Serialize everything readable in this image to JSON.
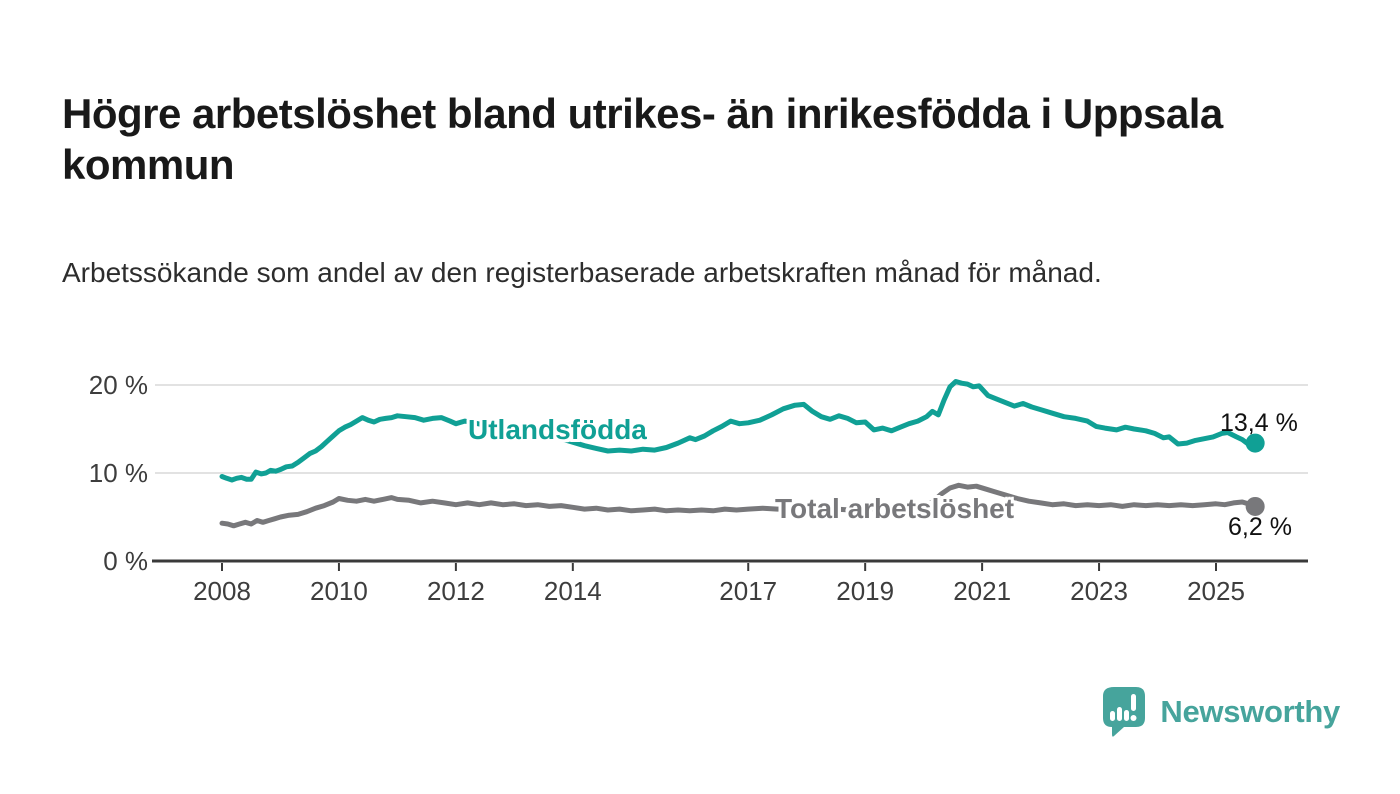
{
  "header": {
    "title": "Högre arbetslöshet bland utrikes- än inrikesfödda i Uppsala kommun",
    "subtitle": "Arbetssökande som andel av den registerbaserade arbetskraften månad för månad."
  },
  "chart_data": {
    "type": "line",
    "unit": "%",
    "x_range": [
      2008,
      2025.67
    ],
    "ylim": [
      0,
      22
    ],
    "grid": "horizontal",
    "gridline_color": "#d9d9d9",
    "axis_color": "#3a3a3a",
    "tick_text_color": "#3d3d3d",
    "y_ticks": [
      {
        "value": 20,
        "label": "20 %"
      },
      {
        "value": 10,
        "label": "10 %"
      },
      {
        "value": 0,
        "label": "0 %"
      }
    ],
    "x_ticks": [
      {
        "year": 2008,
        "label": "2008"
      },
      {
        "year": 2010,
        "label": "2010"
      },
      {
        "year": 2012,
        "label": "2012"
      },
      {
        "year": 2014,
        "label": "2014"
      },
      {
        "year": 2017,
        "label": "2017"
      },
      {
        "year": 2019,
        "label": "2019"
      },
      {
        "year": 2021,
        "label": "2021"
      },
      {
        "year": 2023,
        "label": "2023"
      },
      {
        "year": 2025,
        "label": "2025"
      }
    ],
    "series": [
      {
        "name": "Utlandsfödda",
        "color": "#10a095",
        "end_value": 13.4,
        "end_label": "13,4 %",
        "points": [
          [
            2008.0,
            9.6
          ],
          [
            2008.08,
            9.4
          ],
          [
            2008.17,
            9.2
          ],
          [
            2008.25,
            9.4
          ],
          [
            2008.33,
            9.5
          ],
          [
            2008.42,
            9.3
          ],
          [
            2008.5,
            9.3
          ],
          [
            2008.58,
            10.1
          ],
          [
            2008.67,
            9.9
          ],
          [
            2008.75,
            10.0
          ],
          [
            2008.83,
            10.3
          ],
          [
            2008.92,
            10.2
          ],
          [
            2009.0,
            10.4
          ],
          [
            2009.1,
            10.7
          ],
          [
            2009.2,
            10.8
          ],
          [
            2009.3,
            11.2
          ],
          [
            2009.4,
            11.7
          ],
          [
            2009.5,
            12.2
          ],
          [
            2009.6,
            12.5
          ],
          [
            2009.7,
            13.0
          ],
          [
            2009.8,
            13.6
          ],
          [
            2009.9,
            14.2
          ],
          [
            2010.0,
            14.8
          ],
          [
            2010.1,
            15.2
          ],
          [
            2010.2,
            15.5
          ],
          [
            2010.3,
            15.9
          ],
          [
            2010.4,
            16.3
          ],
          [
            2010.5,
            16.0
          ],
          [
            2010.6,
            15.8
          ],
          [
            2010.7,
            16.1
          ],
          [
            2010.8,
            16.2
          ],
          [
            2010.9,
            16.3
          ],
          [
            2011.0,
            16.5
          ],
          [
            2011.15,
            16.4
          ],
          [
            2011.3,
            16.3
          ],
          [
            2011.45,
            16.0
          ],
          [
            2011.6,
            16.2
          ],
          [
            2011.75,
            16.3
          ],
          [
            2011.9,
            15.9
          ],
          [
            2012.0,
            15.6
          ],
          [
            2012.15,
            15.9
          ],
          [
            2012.3,
            15.7
          ],
          [
            2012.45,
            15.5
          ],
          [
            2012.6,
            15.8
          ],
          [
            2012.75,
            15.6
          ],
          [
            2012.9,
            15.4
          ],
          [
            2013.0,
            15.2
          ],
          [
            2013.2,
            14.9
          ],
          [
            2013.4,
            14.6
          ],
          [
            2013.6,
            14.3
          ],
          [
            2013.8,
            13.9
          ],
          [
            2014.0,
            13.5
          ],
          [
            2014.2,
            13.1
          ],
          [
            2014.4,
            12.8
          ],
          [
            2014.6,
            12.5
          ],
          [
            2014.8,
            12.6
          ],
          [
            2015.0,
            12.5
          ],
          [
            2015.2,
            12.7
          ],
          [
            2015.4,
            12.6
          ],
          [
            2015.6,
            12.9
          ],
          [
            2015.8,
            13.4
          ],
          [
            2016.0,
            14.0
          ],
          [
            2016.1,
            13.8
          ],
          [
            2016.25,
            14.2
          ],
          [
            2016.4,
            14.8
          ],
          [
            2016.55,
            15.3
          ],
          [
            2016.7,
            15.9
          ],
          [
            2016.85,
            15.6
          ],
          [
            2017.0,
            15.7
          ],
          [
            2017.2,
            16.0
          ],
          [
            2017.4,
            16.6
          ],
          [
            2017.6,
            17.3
          ],
          [
            2017.8,
            17.7
          ],
          [
            2017.95,
            17.8
          ],
          [
            2018.1,
            17.0
          ],
          [
            2018.25,
            16.4
          ],
          [
            2018.4,
            16.1
          ],
          [
            2018.55,
            16.5
          ],
          [
            2018.7,
            16.2
          ],
          [
            2018.85,
            15.7
          ],
          [
            2019.0,
            15.8
          ],
          [
            2019.15,
            14.9
          ],
          [
            2019.3,
            15.1
          ],
          [
            2019.45,
            14.8
          ],
          [
            2019.6,
            15.2
          ],
          [
            2019.75,
            15.6
          ],
          [
            2019.9,
            15.9
          ],
          [
            2020.05,
            16.4
          ],
          [
            2020.15,
            17.0
          ],
          [
            2020.25,
            16.6
          ],
          [
            2020.35,
            18.3
          ],
          [
            2020.45,
            19.8
          ],
          [
            2020.55,
            20.4
          ],
          [
            2020.65,
            20.2
          ],
          [
            2020.75,
            20.1
          ],
          [
            2020.85,
            19.8
          ],
          [
            2020.95,
            19.9
          ],
          [
            2021.1,
            18.8
          ],
          [
            2021.25,
            18.4
          ],
          [
            2021.4,
            18.0
          ],
          [
            2021.55,
            17.6
          ],
          [
            2021.7,
            17.9
          ],
          [
            2021.85,
            17.5
          ],
          [
            2022.0,
            17.2
          ],
          [
            2022.2,
            16.8
          ],
          [
            2022.4,
            16.4
          ],
          [
            2022.6,
            16.2
          ],
          [
            2022.8,
            15.9
          ],
          [
            2022.95,
            15.3
          ],
          [
            2023.1,
            15.1
          ],
          [
            2023.3,
            14.9
          ],
          [
            2023.45,
            15.2
          ],
          [
            2023.6,
            15.0
          ],
          [
            2023.8,
            14.8
          ],
          [
            2023.95,
            14.5
          ],
          [
            2024.1,
            14.0
          ],
          [
            2024.2,
            14.1
          ],
          [
            2024.35,
            13.3
          ],
          [
            2024.5,
            13.4
          ],
          [
            2024.65,
            13.7
          ],
          [
            2024.8,
            13.9
          ],
          [
            2024.95,
            14.1
          ],
          [
            2025.1,
            14.5
          ],
          [
            2025.2,
            14.6
          ],
          [
            2025.35,
            14.1
          ],
          [
            2025.45,
            13.8
          ],
          [
            2025.55,
            13.3
          ],
          [
            2025.67,
            13.4
          ]
        ]
      },
      {
        "name": "Total arbetslöshet",
        "color": "#78787b",
        "end_value": 6.2,
        "end_label": "6,2 %",
        "points": [
          [
            2008.0,
            4.3
          ],
          [
            2008.1,
            4.2
          ],
          [
            2008.2,
            4.0
          ],
          [
            2008.3,
            4.2
          ],
          [
            2008.4,
            4.4
          ],
          [
            2008.5,
            4.2
          ],
          [
            2008.6,
            4.6
          ],
          [
            2008.7,
            4.4
          ],
          [
            2008.8,
            4.6
          ],
          [
            2008.9,
            4.8
          ],
          [
            2009.0,
            5.0
          ],
          [
            2009.15,
            5.2
          ],
          [
            2009.3,
            5.3
          ],
          [
            2009.45,
            5.6
          ],
          [
            2009.6,
            6.0
          ],
          [
            2009.75,
            6.3
          ],
          [
            2009.9,
            6.7
          ],
          [
            2010.0,
            7.1
          ],
          [
            2010.15,
            6.9
          ],
          [
            2010.3,
            6.8
          ],
          [
            2010.45,
            7.0
          ],
          [
            2010.6,
            6.8
          ],
          [
            2010.75,
            7.0
          ],
          [
            2010.9,
            7.2
          ],
          [
            2011.0,
            7.0
          ],
          [
            2011.2,
            6.9
          ],
          [
            2011.4,
            6.6
          ],
          [
            2011.6,
            6.8
          ],
          [
            2011.8,
            6.6
          ],
          [
            2012.0,
            6.4
          ],
          [
            2012.2,
            6.6
          ],
          [
            2012.4,
            6.4
          ],
          [
            2012.6,
            6.6
          ],
          [
            2012.8,
            6.4
          ],
          [
            2013.0,
            6.5
          ],
          [
            2013.2,
            6.3
          ],
          [
            2013.4,
            6.4
          ],
          [
            2013.6,
            6.2
          ],
          [
            2013.8,
            6.3
          ],
          [
            2014.0,
            6.1
          ],
          [
            2014.2,
            5.9
          ],
          [
            2014.4,
            6.0
          ],
          [
            2014.6,
            5.8
          ],
          [
            2014.8,
            5.9
          ],
          [
            2015.0,
            5.7
          ],
          [
            2015.2,
            5.8
          ],
          [
            2015.4,
            5.9
          ],
          [
            2015.6,
            5.7
          ],
          [
            2015.8,
            5.8
          ],
          [
            2016.0,
            5.7
          ],
          [
            2016.2,
            5.8
          ],
          [
            2016.4,
            5.7
          ],
          [
            2016.6,
            5.9
          ],
          [
            2016.8,
            5.8
          ],
          [
            2017.0,
            5.9
          ],
          [
            2017.25,
            6.0
          ],
          [
            2017.5,
            5.9
          ],
          [
            2017.75,
            6.0
          ],
          [
            2018.0,
            5.9
          ],
          [
            2018.25,
            5.8
          ],
          [
            2018.5,
            5.9
          ],
          [
            2018.75,
            5.8
          ],
          [
            2019.0,
            5.9
          ],
          [
            2019.25,
            6.0
          ],
          [
            2019.5,
            6.0
          ],
          [
            2019.75,
            6.1
          ],
          [
            2020.0,
            6.3
          ],
          [
            2020.15,
            6.7
          ],
          [
            2020.3,
            7.6
          ],
          [
            2020.45,
            8.3
          ],
          [
            2020.6,
            8.6
          ],
          [
            2020.75,
            8.4
          ],
          [
            2020.9,
            8.5
          ],
          [
            2021.05,
            8.2
          ],
          [
            2021.2,
            7.9
          ],
          [
            2021.4,
            7.5
          ],
          [
            2021.6,
            7.1
          ],
          [
            2021.8,
            6.8
          ],
          [
            2022.0,
            6.6
          ],
          [
            2022.2,
            6.4
          ],
          [
            2022.4,
            6.5
          ],
          [
            2022.6,
            6.3
          ],
          [
            2022.8,
            6.4
          ],
          [
            2023.0,
            6.3
          ],
          [
            2023.2,
            6.4
          ],
          [
            2023.4,
            6.2
          ],
          [
            2023.6,
            6.4
          ],
          [
            2023.8,
            6.3
          ],
          [
            2024.0,
            6.4
          ],
          [
            2024.2,
            6.3
          ],
          [
            2024.4,
            6.4
          ],
          [
            2024.6,
            6.3
          ],
          [
            2024.8,
            6.4
          ],
          [
            2025.0,
            6.5
          ],
          [
            2025.15,
            6.4
          ],
          [
            2025.3,
            6.6
          ],
          [
            2025.45,
            6.7
          ],
          [
            2025.6,
            6.4
          ],
          [
            2025.67,
            6.2
          ]
        ]
      }
    ]
  },
  "branding": {
    "logo_text": "Newsworthy",
    "logo_color": "#46a49c",
    "icon": "newsworthy-bubble-chart-icon"
  }
}
